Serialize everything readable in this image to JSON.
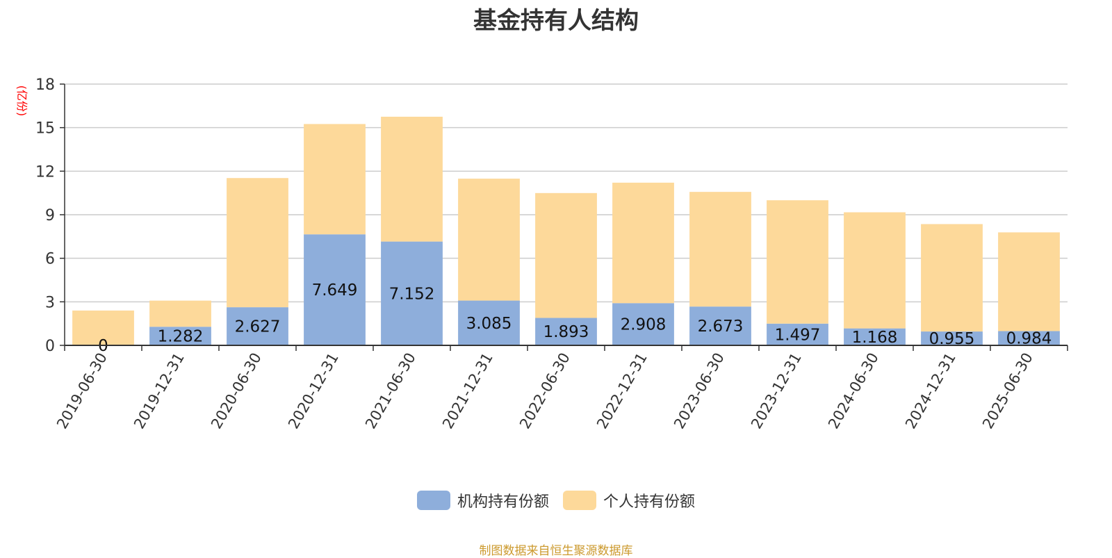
{
  "chart_data": {
    "type": "bar",
    "stacked": true,
    "title": "基金持有人结构",
    "ylabel": "(亿份)",
    "ylim": [
      0,
      18
    ],
    "yticks": [
      0,
      3,
      6,
      9,
      12,
      15,
      18
    ],
    "grid": true,
    "legend_position": "bottom",
    "categories": [
      "2019-06-30",
      "2019-12-31",
      "2020-06-30",
      "2020-12-31",
      "2021-06-30",
      "2021-12-31",
      "2022-06-30",
      "2022-12-31",
      "2023-06-30",
      "2023-12-31",
      "2024-06-30",
      "2024-12-31",
      "2025-06-30"
    ],
    "series": [
      {
        "name": "机构持有份额",
        "color": "#8eaedb",
        "values": [
          0,
          1.282,
          2.627,
          7.649,
          7.152,
          3.085,
          1.893,
          2.908,
          2.673,
          1.497,
          1.168,
          0.955,
          0.984
        ],
        "labels": [
          "0",
          "1.282",
          "2.627",
          "7.649",
          "7.152",
          "3.085",
          "1.893",
          "2.908",
          "2.673",
          "1.497",
          "1.168",
          "0.955",
          "0.984"
        ]
      },
      {
        "name": "个人持有份额",
        "color": "#fdd99a",
        "values": [
          2.4,
          1.8,
          8.9,
          7.6,
          8.6,
          8.4,
          8.6,
          8.3,
          7.9,
          8.5,
          8.0,
          7.4,
          6.8
        ]
      }
    ]
  },
  "source_note": "制图数据来自恒生聚源数据库",
  "colors": {
    "axis": "#333333",
    "grid": "#cccccc",
    "unit_label": "#ff0000",
    "source_note": "#cc9a2e"
  }
}
